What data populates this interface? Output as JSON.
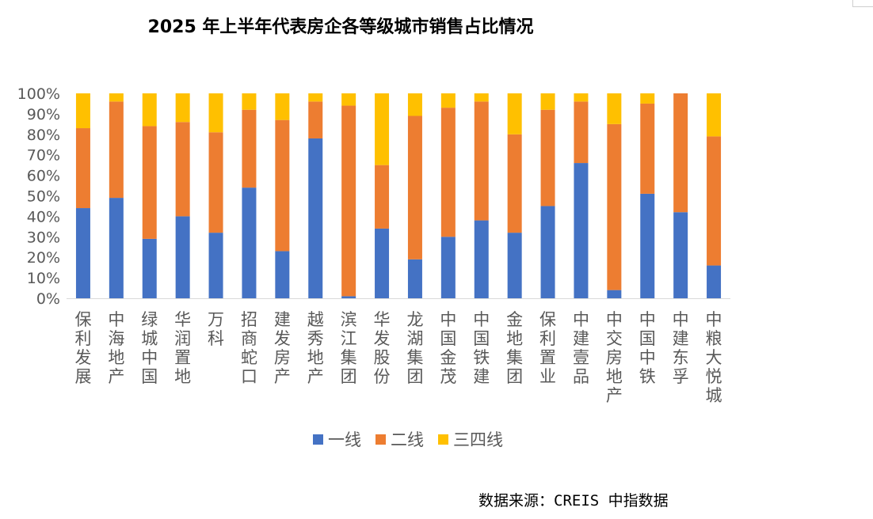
{
  "chart_data": {
    "type": "bar",
    "stacked": true,
    "title": "2025 年上半年代表房企各等级城市销售占比情况",
    "categories": [
      "保利发展",
      "中海地产",
      "绿城中国",
      "华润置地",
      "万科",
      "招商蛇口",
      "建发房产",
      "越秀地产",
      "滨江集团",
      "华发股份",
      "龙湖集团",
      "中国金茂",
      "中国铁建",
      "金地集团",
      "保利置业",
      "中建壹品",
      "中交房地产",
      "中国中铁",
      "中建东孚",
      "中粮大悦城"
    ],
    "series": [
      {
        "name": "一线",
        "color": "#4472C4",
        "values": [
          44,
          49,
          29,
          40,
          32,
          54,
          23,
          78,
          1,
          34,
          19,
          30,
          38,
          32,
          45,
          66,
          4,
          51,
          42,
          16
        ]
      },
      {
        "name": "二线",
        "color": "#ED7D31",
        "values": [
          39,
          47,
          55,
          46,
          49,
          38,
          64,
          18,
          93,
          31,
          70,
          63,
          58,
          48,
          47,
          30,
          81,
          44,
          58,
          63
        ]
      },
      {
        "name": "三四线",
        "color": "#FFC000",
        "values": [
          17,
          4,
          16,
          14,
          19,
          8,
          13,
          4,
          6,
          35,
          11,
          7,
          4,
          20,
          8,
          4,
          15,
          5,
          0,
          21
        ]
      }
    ],
    "yticks": [
      "0%",
      "10%",
      "20%",
      "30%",
      "40%",
      "50%",
      "60%",
      "70%",
      "80%",
      "90%",
      "100%"
    ],
    "ylim": [
      0,
      100
    ],
    "legend_position": "bottom",
    "grid": false
  },
  "source_text": "数据来源：CREIS 中指数据"
}
